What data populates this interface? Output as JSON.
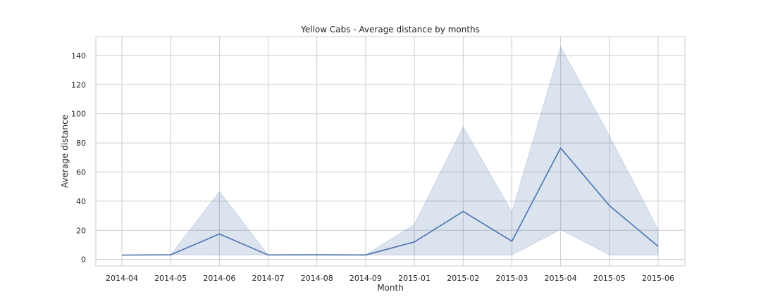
{
  "chart_data": {
    "type": "line",
    "title": "Yellow Cabs - Average distance by months",
    "xlabel": "Month",
    "ylabel": "Average distance",
    "categories": [
      "2014-04",
      "2014-05",
      "2014-06",
      "2014-07",
      "2014-08",
      "2014-09",
      "2015-01",
      "2015-02",
      "2015-03",
      "2015-04",
      "2015-05",
      "2015-06"
    ],
    "series": [
      {
        "values": [
          3,
          3.2,
          17.5,
          3.1,
          3.2,
          3.1,
          12,
          33,
          12.5,
          76.5,
          37,
          9
        ],
        "ci_lower": [
          3,
          3.2,
          3.1,
          3.1,
          3.2,
          3.1,
          3.1,
          3.1,
          3.1,
          20.5,
          3.1,
          3.1
        ],
        "ci_upper": [
          3,
          3.3,
          46.5,
          3.1,
          3.2,
          3.1,
          24,
          91,
          32.5,
          146,
          85,
          20.5
        ],
        "color": "#4c72b0",
        "band_color": "#4c72b0"
      }
    ],
    "yticks": [
      0,
      20,
      40,
      60,
      80,
      100,
      120,
      140
    ],
    "ylim": [
      -4.5,
      153
    ],
    "grid": true,
    "legend": "none"
  }
}
